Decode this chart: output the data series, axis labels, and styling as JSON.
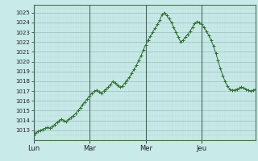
{
  "background_color": "#c8eae8",
  "grid_color_minor": "#b8d8d8",
  "grid_color_major": "#99bbbb",
  "line_color": "#2d6e2d",
  "marker_color": "#2d6e2d",
  "ylim": [
    1012.0,
    1025.8
  ],
  "yticks": [
    1013,
    1014,
    1015,
    1016,
    1017,
    1018,
    1019,
    1020,
    1021,
    1022,
    1023,
    1024,
    1025
  ],
  "day_labels": [
    "Lun",
    "Mar",
    "Mer",
    "Jeu"
  ],
  "day_positions": [
    0,
    24,
    48,
    72
  ],
  "n_points": 96,
  "values": [
    1012.5,
    1012.7,
    1012.9,
    1013.0,
    1013.1,
    1013.2,
    1013.3,
    1013.2,
    1013.4,
    1013.6,
    1013.8,
    1014.0,
    1014.1,
    1014.0,
    1013.9,
    1014.1,
    1014.3,
    1014.5,
    1014.7,
    1015.0,
    1015.3,
    1015.6,
    1015.9,
    1016.2,
    1016.5,
    1016.8,
    1017.0,
    1017.1,
    1016.9,
    1016.8,
    1017.0,
    1017.2,
    1017.4,
    1017.7,
    1018.0,
    1017.8,
    1017.6,
    1017.4,
    1017.5,
    1017.8,
    1018.1,
    1018.4,
    1018.8,
    1019.2,
    1019.6,
    1020.1,
    1020.6,
    1021.2,
    1021.7,
    1022.2,
    1022.6,
    1023.0,
    1023.4,
    1023.8,
    1024.2,
    1024.8,
    1025.0,
    1024.7,
    1024.4,
    1024.0,
    1023.5,
    1023.0,
    1022.5,
    1022.0,
    1022.2,
    1022.5,
    1022.8,
    1023.1,
    1023.5,
    1023.9,
    1024.1,
    1024.0,
    1023.8,
    1023.5,
    1023.1,
    1022.7,
    1022.2,
    1021.6,
    1020.9,
    1020.1,
    1019.3,
    1018.6,
    1018.0,
    1017.5,
    1017.2,
    1017.1,
    1017.1,
    1017.2,
    1017.3,
    1017.4,
    1017.3,
    1017.2,
    1017.1,
    1017.0,
    1017.1,
    1017.2
  ]
}
